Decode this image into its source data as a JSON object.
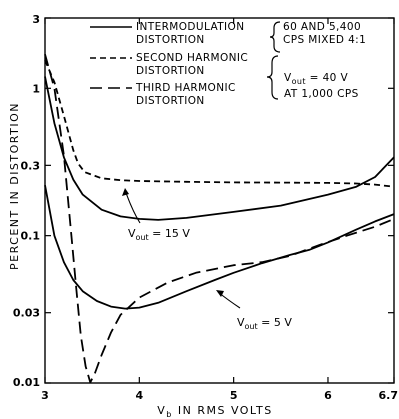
{
  "chart_data": {
    "type": "line",
    "title": "",
    "xlabel_main": "V",
    "xlabel_sub": "b",
    "xlabel_rest": " IN RMS VOLTS",
    "ylabel": "PERCENT IN DISTORTION",
    "xlim": [
      3,
      6.7
    ],
    "ylim": [
      0.01,
      3
    ],
    "ylog": true,
    "grid": false,
    "x_ticks": [
      3,
      4,
      5,
      6,
      6.7
    ],
    "x_tick_labels": [
      "3",
      "4",
      "5",
      "6",
      "6.7"
    ],
    "y_ticks": [
      0.01,
      0.03,
      0.1,
      0.3,
      1,
      3
    ],
    "y_tick_labels": [
      "0.01",
      "0.03",
      "0.1",
      "0.3",
      "1",
      "3"
    ],
    "legend": {
      "placement": "top-right",
      "entries": [
        {
          "style": "solid",
          "line1": "INTERMODULATION",
          "line2": "DISTORTION"
        },
        {
          "style": "short-dash",
          "line1": "SECOND HARMONIC",
          "line2": "DISTORTION"
        },
        {
          "style": "long-dash",
          "line1": "THIRD HARMONIC",
          "line2": "DISTORTION"
        }
      ],
      "brace1": {
        "line1": "60 AND 5,400",
        "line2": "CPS MIXED 4:1"
      },
      "brace2": {
        "line1_main": "V",
        "line1_sub": "out",
        "line1_rest": " = 40 V",
        "line2": "AT 1,000 CPS"
      }
    },
    "annotations": [
      {
        "main": "V",
        "sub": "out",
        "rest": " = 15 V"
      },
      {
        "main": "V",
        "sub": "out",
        "rest": " = 5 V"
      }
    ],
    "series": [
      {
        "style": "solid",
        "points": [
          [
            3.0,
            1.2
          ],
          [
            3.1,
            0.58
          ],
          [
            3.2,
            0.34
          ],
          [
            3.3,
            0.24
          ],
          [
            3.4,
            0.19
          ],
          [
            3.6,
            0.15
          ],
          [
            3.8,
            0.135
          ],
          [
            4.0,
            0.13
          ],
          [
            4.2,
            0.128
          ],
          [
            4.5,
            0.132
          ],
          [
            5.0,
            0.145
          ],
          [
            5.5,
            0.16
          ],
          [
            6.0,
            0.19
          ],
          [
            6.3,
            0.215
          ],
          [
            6.5,
            0.25
          ],
          [
            6.7,
            0.34
          ]
        ]
      },
      {
        "style": "solid",
        "points": [
          [
            3.0,
            0.22
          ],
          [
            3.1,
            0.1
          ],
          [
            3.2,
            0.066
          ],
          [
            3.3,
            0.05
          ],
          [
            3.4,
            0.042
          ],
          [
            3.55,
            0.036
          ],
          [
            3.7,
            0.033
          ],
          [
            3.85,
            0.032
          ],
          [
            4.0,
            0.0325
          ],
          [
            4.2,
            0.035
          ],
          [
            4.5,
            0.042
          ],
          [
            4.8,
            0.05
          ],
          [
            5.0,
            0.056
          ],
          [
            5.3,
            0.065
          ],
          [
            5.6,
            0.074
          ],
          [
            5.8,
            0.08
          ],
          [
            6.0,
            0.09
          ],
          [
            6.3,
            0.11
          ],
          [
            6.5,
            0.125
          ],
          [
            6.7,
            0.14
          ]
        ]
      },
      {
        "style": "short-dash",
        "points": [
          [
            3.0,
            1.55
          ],
          [
            3.1,
            1.1
          ],
          [
            3.2,
            0.65
          ],
          [
            3.3,
            0.38
          ],
          [
            3.35,
            0.31
          ],
          [
            3.42,
            0.27
          ],
          [
            3.6,
            0.245
          ],
          [
            3.8,
            0.238
          ],
          [
            4.0,
            0.235
          ],
          [
            4.5,
            0.232
          ],
          [
            5.0,
            0.23
          ],
          [
            5.5,
            0.229
          ],
          [
            6.0,
            0.228
          ],
          [
            6.3,
            0.226
          ],
          [
            6.5,
            0.222
          ],
          [
            6.7,
            0.215
          ]
        ]
      },
      {
        "style": "long-dash",
        "points": [
          [
            3.0,
            1.7
          ],
          [
            3.1,
            1.0
          ],
          [
            3.2,
            0.35
          ],
          [
            3.28,
            0.1
          ],
          [
            3.33,
            0.045
          ],
          [
            3.38,
            0.021
          ],
          [
            3.43,
            0.013
          ],
          [
            3.48,
            0.0101
          ],
          [
            3.53,
            0.0117
          ],
          [
            3.6,
            0.0155
          ],
          [
            3.7,
            0.022
          ],
          [
            3.8,
            0.029
          ],
          [
            4.0,
            0.038
          ],
          [
            4.3,
            0.048
          ],
          [
            4.6,
            0.056
          ],
          [
            5.0,
            0.063
          ],
          [
            5.3,
            0.066
          ],
          [
            5.6,
            0.073
          ],
          [
            5.9,
            0.086
          ],
          [
            6.2,
            0.1
          ],
          [
            6.5,
            0.115
          ],
          [
            6.7,
            0.13
          ]
        ]
      }
    ]
  }
}
